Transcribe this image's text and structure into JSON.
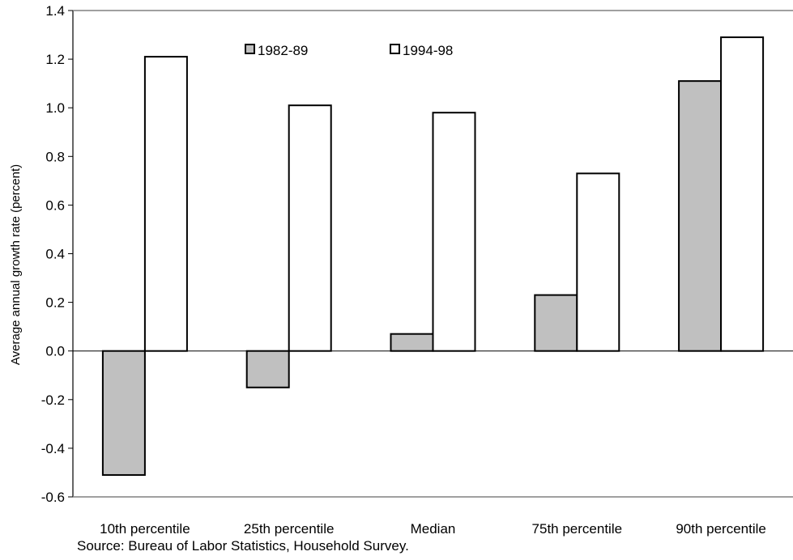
{
  "chart_data": {
    "type": "bar",
    "categories": [
      "10th percentile",
      "25th percentile",
      "Median",
      "75th percentile",
      "90th percentile"
    ],
    "series": [
      {
        "name": "1982-89",
        "values": [
          -0.51,
          -0.15,
          0.07,
          0.23,
          1.11
        ],
        "color": "#c0c0c0"
      },
      {
        "name": "1994-98",
        "values": [
          1.21,
          1.01,
          0.98,
          0.73,
          1.29
        ],
        "color": "#ffffff"
      }
    ],
    "ylabel": "Average annual growth rate (percent)",
    "ylim": [
      -0.6,
      1.4
    ],
    "yticks": [
      -0.6,
      -0.4,
      -0.2,
      0.0,
      0.2,
      0.4,
      0.6,
      0.8,
      1.0,
      1.2,
      1.4
    ],
    "ytick_labels": [
      "-0.6",
      "-0.4",
      "-0.2",
      "0.0",
      "0.2",
      "0.4",
      "0.6",
      "0.8",
      "1.0",
      "1.2",
      "1.4"
    ],
    "grid": false,
    "legend_position": "top-center"
  },
  "source": "Source: Bureau of Labor Statistics, Household Survey."
}
